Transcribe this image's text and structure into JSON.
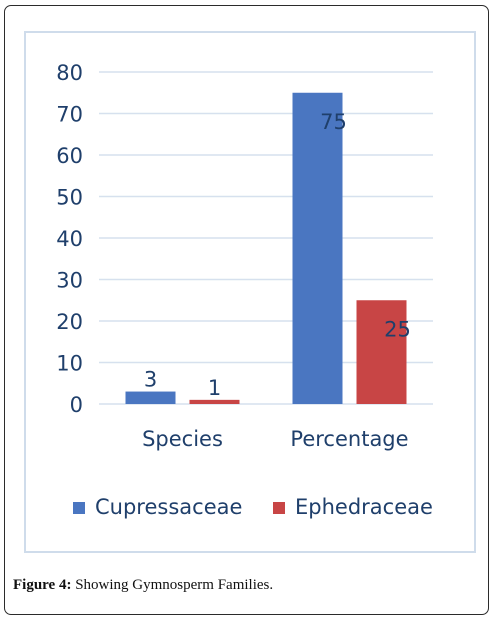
{
  "caption": {
    "label": "Figure 4:",
    "text": " Showing Gymnosperm Families."
  },
  "chart_data": {
    "type": "bar",
    "categories": [
      "Species",
      "Percentage"
    ],
    "series": [
      {
        "name": "Cupressaceae",
        "values": [
          3,
          75
        ],
        "color": "#4a76c1"
      },
      {
        "name": "Ephedraceae",
        "values": [
          1,
          25
        ],
        "color": "#c84545"
      }
    ],
    "title": "",
    "xlabel": "",
    "ylabel": "",
    "ylim": [
      0,
      80
    ],
    "yticks": [
      0,
      10,
      20,
      30,
      40,
      50,
      60,
      70,
      80
    ],
    "grid": true,
    "legend_position": "bottom",
    "text_color": "#1f3f6b",
    "grid_color": "#d6e1ee"
  }
}
